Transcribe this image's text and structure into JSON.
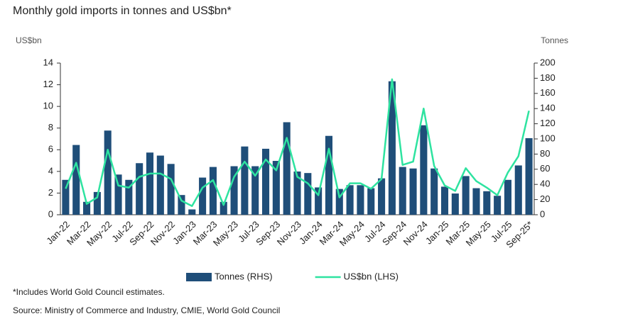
{
  "chart_data": {
    "type": "combo",
    "title": "Monthly gold imports in tonnes and US$bn*",
    "y_label": "US$bn",
    "y2_label": "Tonnes",
    "categories": [
      "Jan-22",
      null,
      "Mar-22",
      null,
      "May-22",
      null,
      "Jul-22",
      null,
      "Sep-22",
      null,
      "Nov-22",
      null,
      "Jan-23",
      null,
      "Mar-23",
      null,
      "May-23",
      null,
      "Jul-23",
      null,
      "Sep-23",
      null,
      "Nov-23",
      null,
      "Jan-24",
      null,
      "Mar-24",
      null,
      "May-24",
      null,
      "Jul-24",
      null,
      "Sep-24",
      null,
      "Nov-24",
      null,
      "Jan-25",
      null,
      "Mar-25",
      null,
      "May-25",
      null,
      "Jul-25",
      null,
      "Sep-25*"
    ],
    "series": [
      {
        "name": "Tonnes (RHS)",
        "type": "bar",
        "axis": "y2",
        "color": "#1f4e79",
        "values": [
          46,
          92,
          17,
          30,
          111,
          53,
          46,
          68,
          82,
          78,
          67,
          26,
          7,
          49,
          63,
          17,
          64,
          90,
          64,
          87,
          71,
          122,
          57,
          55,
          36,
          104,
          34,
          39,
          39,
          35,
          48,
          176,
          63,
          61,
          118,
          61,
          37,
          28,
          51,
          35,
          31,
          25,
          46,
          65,
          101
        ]
      },
      {
        "name": "US$bn (LHS)",
        "type": "line",
        "color": "#2ee3a0",
        "values": [
          2.4,
          4.8,
          1.0,
          1.6,
          6.0,
          2.7,
          2.5,
          3.5,
          3.8,
          3.8,
          3.3,
          1.3,
          0.8,
          2.5,
          3.2,
          0.9,
          3.5,
          4.9,
          3.6,
          5.1,
          4.1,
          7.1,
          3.5,
          2.9,
          1.8,
          6.1,
          1.6,
          2.9,
          2.9,
          2.4,
          3.3,
          12.5,
          4.6,
          4.9,
          9.8,
          4.5,
          2.7,
          2.2,
          4.3,
          3.1,
          2.5,
          1.8,
          3.9,
          5.4,
          9.6
        ]
      }
    ],
    "ylim": [
      0,
      14
    ],
    "yticks": [
      0,
      2,
      4,
      6,
      8,
      10,
      12,
      14
    ],
    "y2lim": [
      0,
      200
    ],
    "y2ticks": [
      0,
      20,
      40,
      60,
      80,
      100,
      120,
      140,
      160,
      180,
      200
    ],
    "grid": false,
    "legend": "bottom",
    "footnote": "*Includes World Gold Council estimates.",
    "source": "Source: Ministry of Commerce and Industry, CMIE, World Gold Council"
  }
}
